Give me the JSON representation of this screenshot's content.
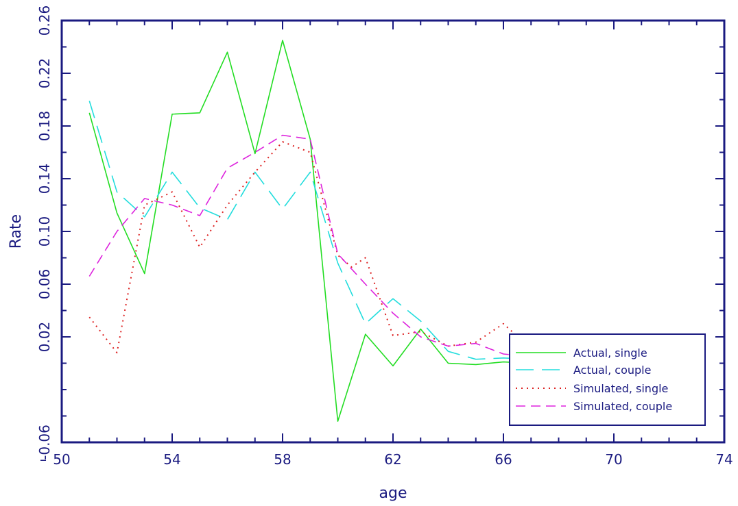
{
  "chart_data": {
    "type": "line",
    "xlabel": "age",
    "ylabel": "Rate",
    "xlim": [
      50,
      74
    ],
    "ylim": [
      -0.06,
      0.26
    ],
    "x_ticks": [
      50,
      54,
      58,
      62,
      66,
      70,
      74
    ],
    "x_tick_labels": [
      "50",
      "54",
      "58",
      "62",
      "66",
      "70",
      "74"
    ],
    "x_minor_step": 1,
    "y_ticks": [
      -0.06,
      0.02,
      0.06,
      0.1,
      0.14,
      0.18,
      0.22,
      0.26
    ],
    "y_tick_labels": [
      "-0.06",
      "0.02",
      "0.06",
      "0.10",
      "0.14",
      "0.18",
      "0.22",
      "0.26"
    ],
    "y_minor_step": 0.02,
    "x_axis_prefix": "–",
    "legend_position": "bottom-right",
    "colors": {
      "axis": "#1a1a80",
      "actual_single": "#22dd22",
      "actual_couple": "#22dddd",
      "simulated_single": "#dd2222",
      "simulated_couple": "#dd22dd"
    },
    "series": [
      {
        "name": "Actual, single",
        "style": "solid",
        "color": "#22dd22",
        "x": [
          51,
          52,
          53,
          54,
          55,
          56,
          57,
          58,
          59,
          60,
          61,
          62,
          63,
          64,
          65,
          66,
          67
        ],
        "y": [
          0.19,
          0.114,
          0.068,
          0.189,
          0.19,
          0.236,
          0.159,
          0.245,
          0.17,
          -0.044,
          0.022,
          -0.002,
          0.026,
          0.0,
          -0.001,
          0.001,
          0.0
        ]
      },
      {
        "name": "Actual, couple",
        "style": "longdash",
        "color": "#22dddd",
        "x": [
          51,
          52,
          53,
          54,
          55,
          56,
          57,
          58,
          59,
          60,
          61,
          62,
          63,
          64,
          65,
          66,
          67
        ],
        "y": [
          0.199,
          0.13,
          0.111,
          0.145,
          0.118,
          0.109,
          0.145,
          0.117,
          0.145,
          0.076,
          0.03,
          0.049,
          0.032,
          0.009,
          0.003,
          0.004,
          0.003
        ]
      },
      {
        "name": "Simulated, single",
        "style": "dotted",
        "color": "#dd2222",
        "x": [
          51,
          52,
          53,
          54,
          55,
          56,
          57,
          58,
          59,
          60,
          60.5,
          61,
          62,
          63,
          64,
          65,
          66,
          67
        ],
        "y": [
          0.035,
          0.008,
          0.12,
          0.13,
          0.088,
          0.12,
          0.145,
          0.168,
          0.16,
          0.082,
          0.073,
          0.08,
          0.021,
          0.024,
          0.013,
          0.016,
          0.03,
          0.011
        ]
      },
      {
        "name": "Simulated, couple",
        "style": "dash",
        "color": "#dd22dd",
        "x": [
          51,
          52,
          53,
          54,
          55,
          56,
          57,
          58,
          59,
          60,
          61,
          62,
          63,
          64,
          65,
          66,
          67
        ],
        "y": [
          0.066,
          0.1,
          0.125,
          0.12,
          0.112,
          0.148,
          0.16,
          0.173,
          0.17,
          0.083,
          0.06,
          0.038,
          0.02,
          0.013,
          0.015,
          0.007,
          0.005
        ]
      }
    ]
  }
}
